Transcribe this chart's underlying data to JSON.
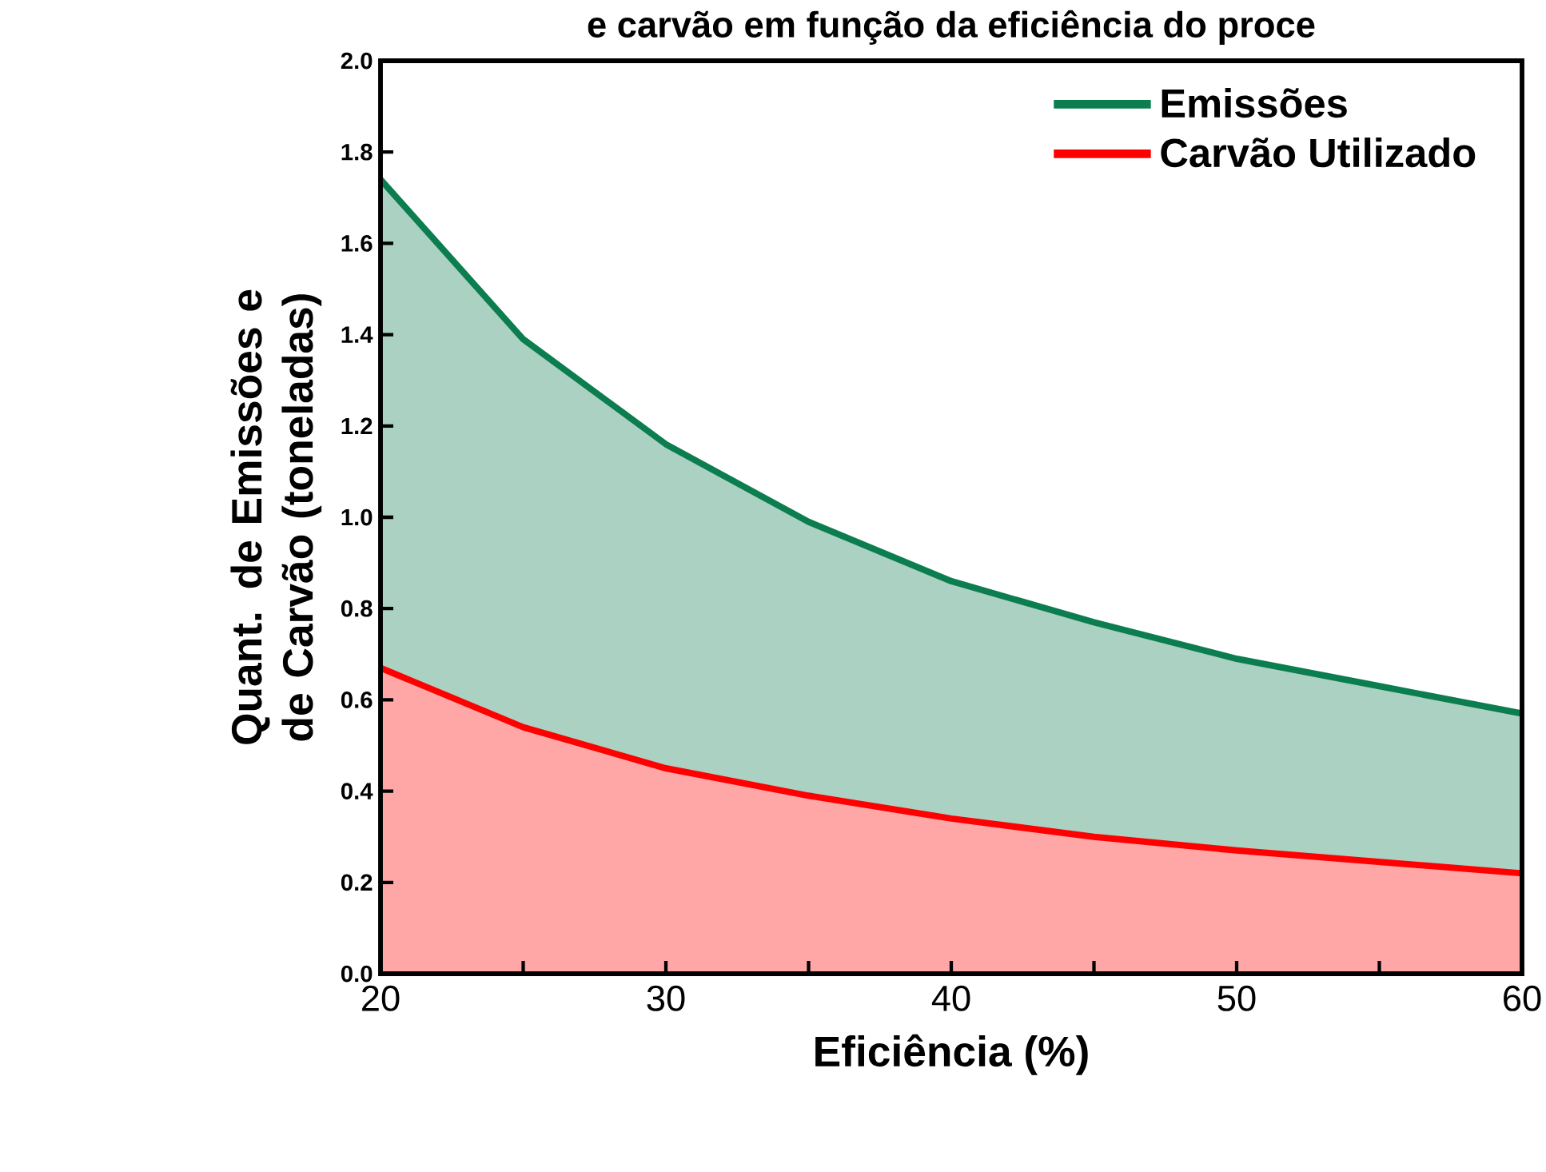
{
  "chart_data": {
    "type": "area",
    "title": "e carvão em função da eficiência do proce",
    "xlabel": "Eficiência (%)",
    "ylabel": "Quant. de Emissões e de Carvão (toneladas)",
    "x": [
      20,
      25,
      30,
      35,
      40,
      45,
      50,
      55,
      60
    ],
    "series": [
      {
        "name": "Emissões",
        "color": "#0b7d4f",
        "values": [
          1.74,
          1.39,
          1.16,
          0.99,
          0.86,
          0.77,
          0.69,
          0.63,
          0.57
        ]
      },
      {
        "name": "Carvão Utilizado",
        "color": "#ff0000",
        "values": [
          0.67,
          0.54,
          0.45,
          0.39,
          0.34,
          0.3,
          0.27,
          0.245,
          0.22
        ]
      }
    ],
    "xlim": [
      20,
      60
    ],
    "xticks": [
      20,
      {
        "value": 25,
        "label": null
      },
      30,
      {
        "value": 35,
        "label": null
      },
      40,
      {
        "value": 45,
        "label": null
      },
      50,
      {
        "value": 55,
        "label": null
      },
      60
    ],
    "ylim": [
      0,
      2
    ],
    "yticks": [
      {
        "value": 0,
        "label": "0.0"
      },
      {
        "value": 0.2,
        "label": "0.2"
      },
      {
        "value": 0.4,
        "label": "0.4"
      },
      {
        "value": 0.6,
        "label": "0.6"
      },
      {
        "value": 0.8,
        "label": "0.8"
      },
      {
        "value": 1.0,
        "label": "1.0"
      },
      {
        "value": 1.2,
        "label": "1.2"
      },
      {
        "value": 1.4,
        "label": "1.4"
      },
      {
        "value": 1.6,
        "label": "1.6"
      },
      {
        "value": 1.8,
        "label": "1.8"
      },
      {
        "value": 2.0,
        "label": "2.0"
      }
    ],
    "legend": "top right",
    "grid": false,
    "marker": "none",
    "line_style": "solid"
  }
}
